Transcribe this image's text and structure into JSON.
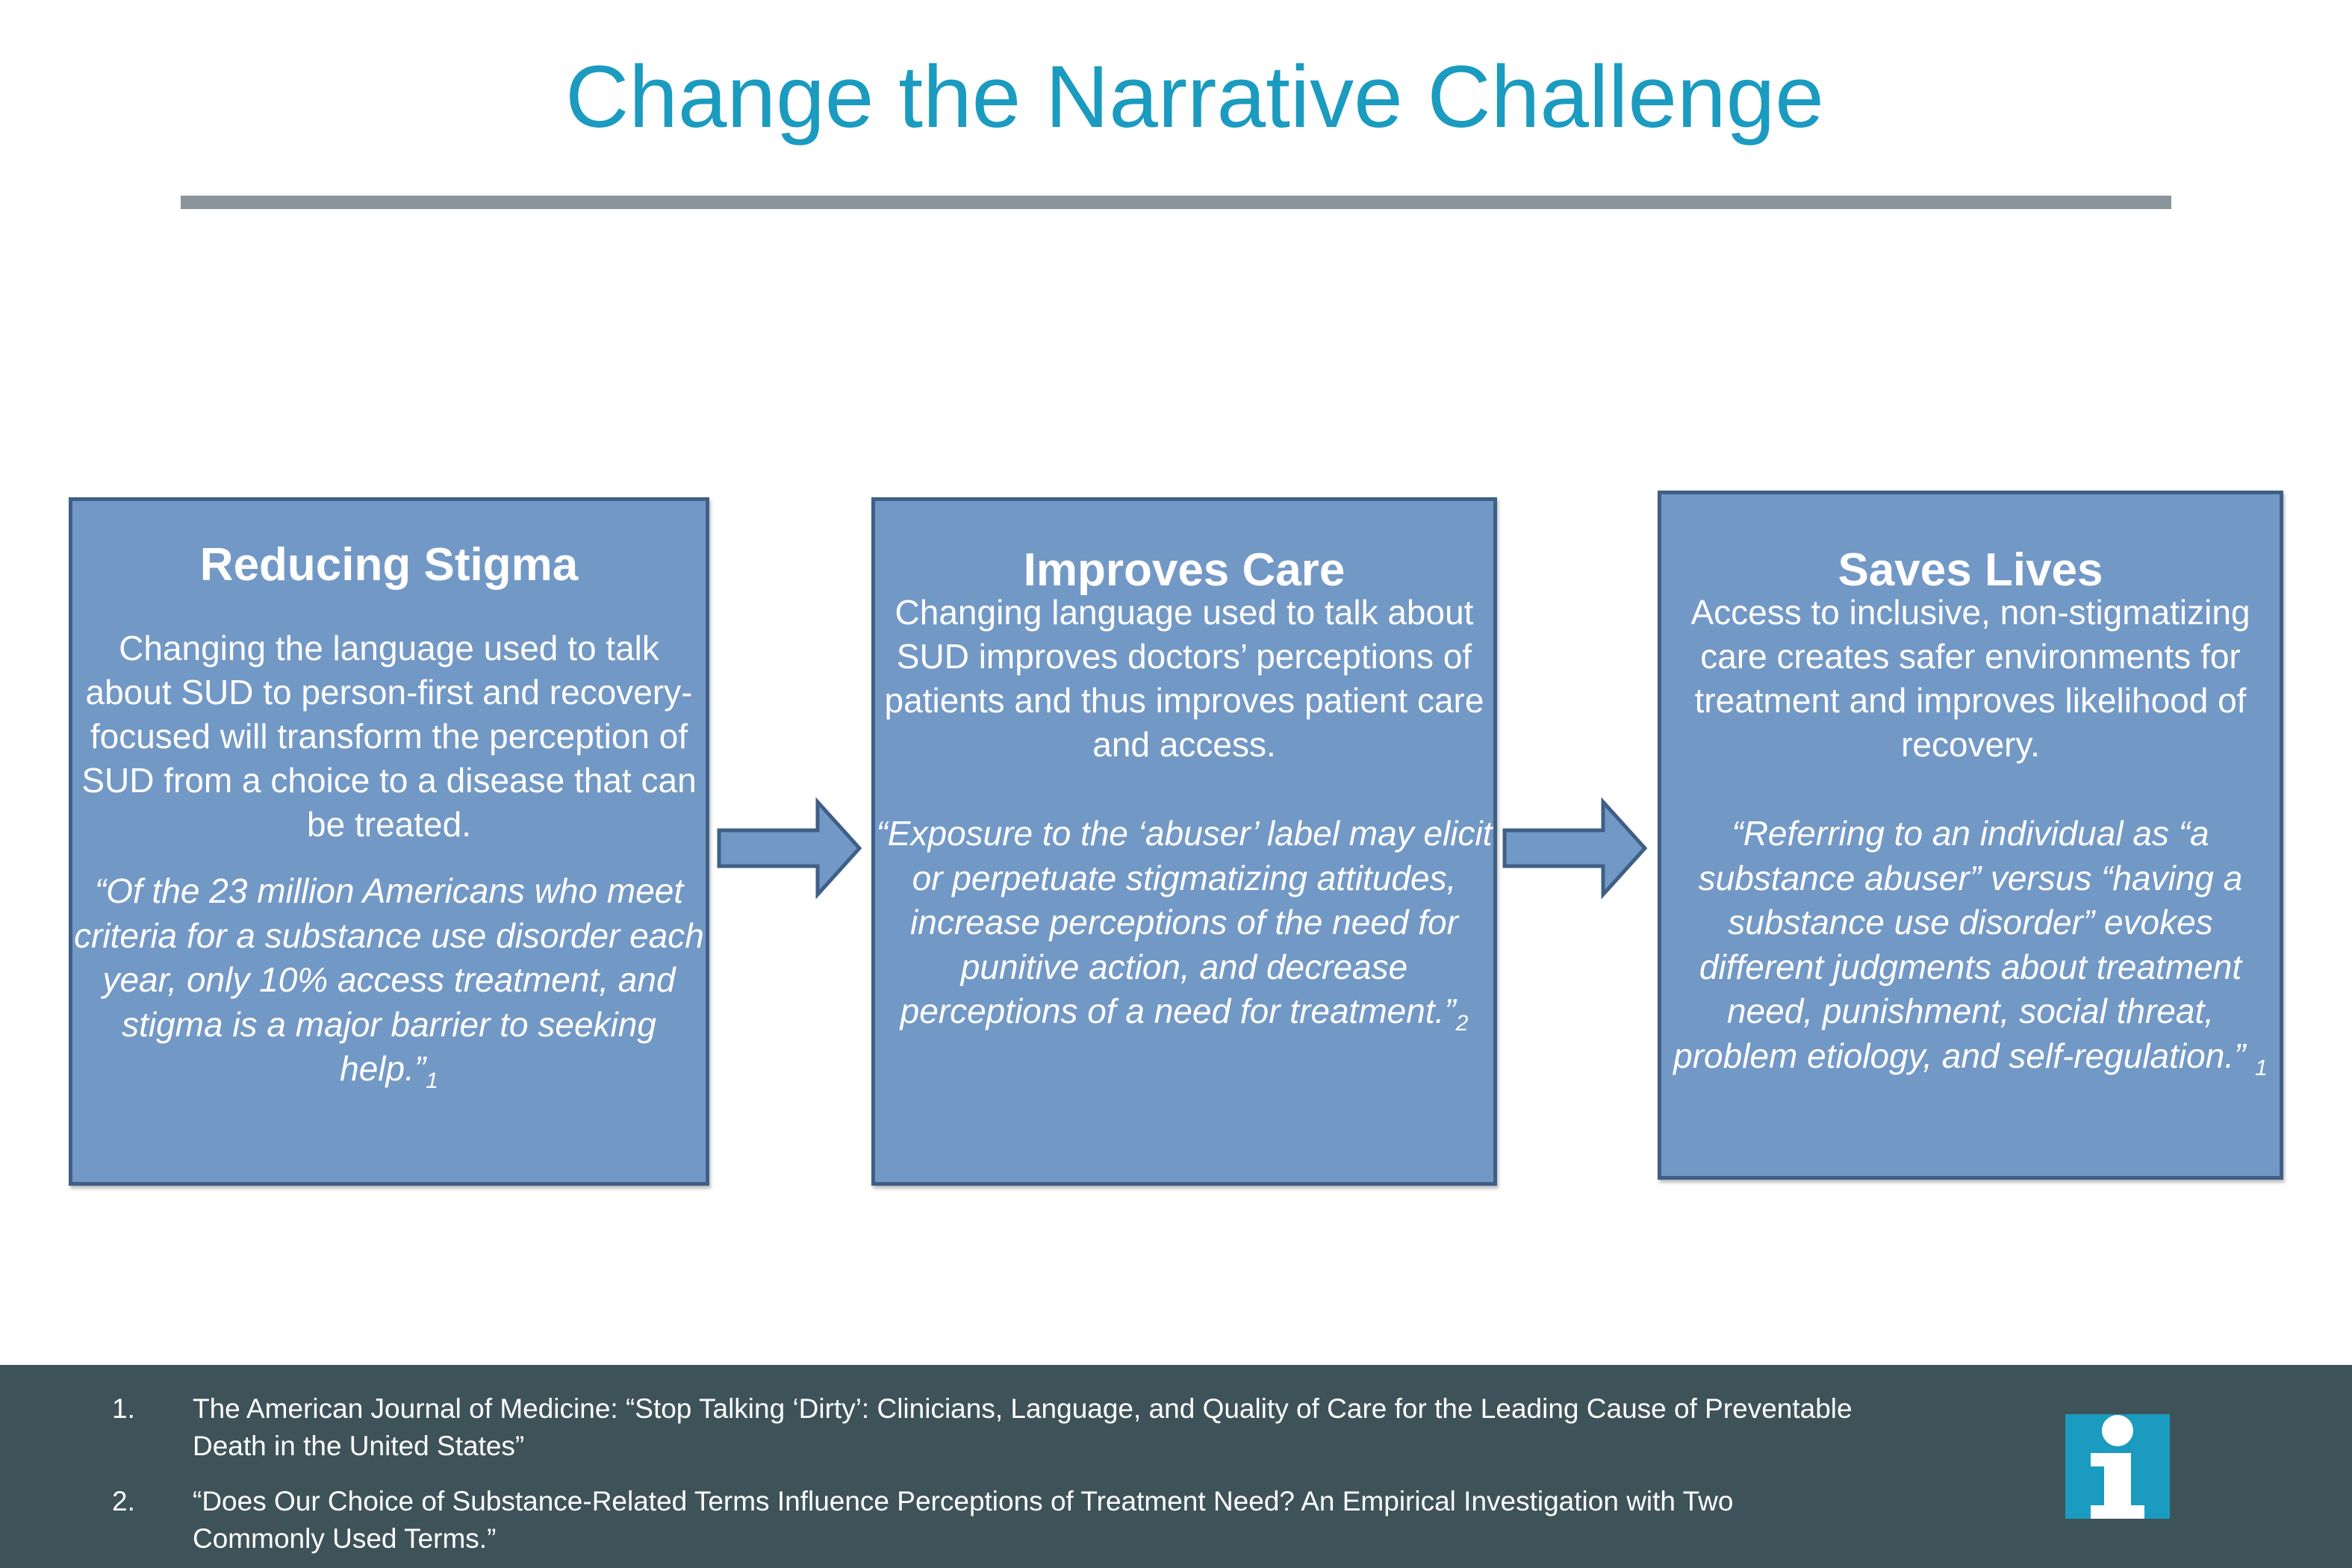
{
  "header": {
    "title": "Change the Narrative Challenge"
  },
  "boxes": [
    {
      "title": "Reducing Stigma",
      "body": "Changing the language used to talk about SUD to person-first and recovery-focused will transform the perception of SUD from a choice to a disease that can be treated.",
      "quote": "“Of the 23 million Americans who meet criteria for a substance use disorder each year, only 10% access treatment, and stigma is a major barrier to seeking help.”",
      "citation": "1"
    },
    {
      "title": "Improves Care",
      "body": "Changing language used to talk about SUD improves doctors’ perceptions of patients and thus improves patient care and access.",
      "quote": "“Exposure to the ‘abuser’ label may elicit or perpetuate stigmatizing attitudes, increase perceptions of the need for punitive action, and decrease perceptions of a need for treatment.”",
      "citation": "2"
    },
    {
      "title": "Saves Lives",
      "body": "Access to inclusive, non-stigmatizing care creates safer environments for treatment and improves likelihood of recovery.",
      "quote": "“Referring to an individual as “a substance abuser” versus “having a substance use disorder” evokes different judgments about treatment need, punishment, social threat, problem etiology, and self-regulation.” ",
      "citation": "1"
    }
  ],
  "footer": {
    "references": [
      {
        "number": "1.",
        "text": "The American Journal of Medicine: “Stop Talking ‘Dirty’: Clinicians, Language, and Quality of Care for the Leading Cause of Preventable Death in the United States”"
      },
      {
        "number": "2.",
        "text": "“Does Our Choice of Substance-Related Terms Influence Perceptions of Treatment Need? An Empirical Investigation with Two Commonly Used Terms.”"
      }
    ],
    "logo_icon": "info-i-logo"
  },
  "colors": {
    "title": "#1a9bbf",
    "box_fill": "#7298c6",
    "box_border": "#3f5f87",
    "footer_bg": "#3e5259",
    "logo": "#1a9bbf"
  }
}
